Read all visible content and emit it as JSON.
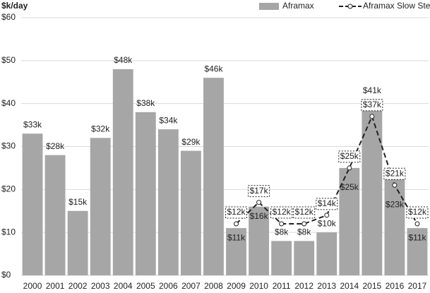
{
  "chart_data": {
    "type": "bar",
    "y_label": "$k/day",
    "categories": [
      "2000",
      "2001",
      "2002",
      "2003",
      "2004",
      "2005",
      "2006",
      "2007",
      "2008",
      "2009",
      "2010",
      "2011",
      "2012",
      "2013",
      "2014",
      "2015",
      "2016",
      "2017"
    ],
    "series": [
      {
        "name": "Aframax",
        "type": "bar",
        "color": "#a6a6a6",
        "values": [
          33,
          28,
          15,
          32,
          48,
          38,
          34,
          29,
          46,
          11,
          16,
          8,
          8,
          10,
          25,
          41,
          23,
          11
        ],
        "value_labels": [
          "$33k",
          "$28k",
          "$15k",
          "$32k",
          "$48k",
          "$38k",
          "$34k",
          "$29k",
          "$46k",
          "$11k",
          "$16k",
          "$8k",
          "$8k",
          "$10k",
          "$25k",
          "$41k",
          "$23k",
          "$11k"
        ]
      },
      {
        "name": "Aframax Slow Steaming",
        "type": "line",
        "color": "#222222",
        "values": [
          null,
          null,
          null,
          null,
          null,
          null,
          null,
          null,
          null,
          12,
          17,
          12,
          12,
          14,
          25,
          37,
          21,
          12
        ],
        "value_labels": [
          null,
          null,
          null,
          null,
          null,
          null,
          null,
          null,
          null,
          "$12k",
          "$17k",
          "$12k",
          "$12k",
          "$14k",
          "$25k",
          "$37k",
          "$21k",
          "$12k"
        ]
      }
    ],
    "ylim": [
      0,
      60
    ],
    "yticks": [
      {
        "value": 0,
        "label": "$0"
      },
      {
        "value": 10,
        "label": "$10"
      },
      {
        "value": 20,
        "label": "$20"
      },
      {
        "value": 30,
        "label": "$30"
      },
      {
        "value": 40,
        "label": "$40"
      },
      {
        "value": 50,
        "label": "$50"
      },
      {
        "value": 60,
        "label": "$60"
      }
    ],
    "grid": true,
    "legend": "top-right"
  }
}
